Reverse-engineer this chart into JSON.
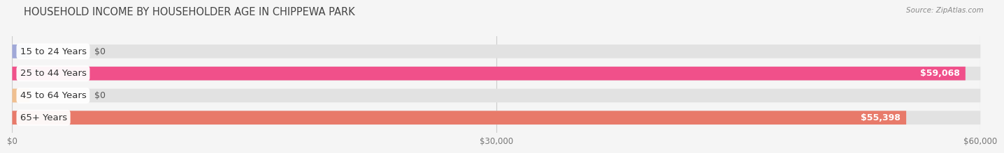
{
  "title": "HOUSEHOLD INCOME BY HOUSEHOLDER AGE IN CHIPPEWA PARK",
  "source": "Source: ZipAtlas.com",
  "categories": [
    "15 to 24 Years",
    "25 to 44 Years",
    "45 to 64 Years",
    "65+ Years"
  ],
  "values": [
    0,
    59068,
    0,
    55398
  ],
  "bar_colors": [
    "#a0a8d8",
    "#f0508a",
    "#f0c090",
    "#e87a6a"
  ],
  "value_labels": [
    "$0",
    "$59,068",
    "$0",
    "$55,398"
  ],
  "xlim": [
    0,
    60000
  ],
  "xticks": [
    0,
    30000,
    60000
  ],
  "xticklabels": [
    "$0",
    "$30,000",
    "$60,000"
  ],
  "bg_color": "#f5f5f5",
  "bar_height": 0.62,
  "bar_bg_color": "#e2e2e2",
  "title_fontsize": 10.5,
  "label_fontsize": 9.5,
  "value_fontsize": 9
}
